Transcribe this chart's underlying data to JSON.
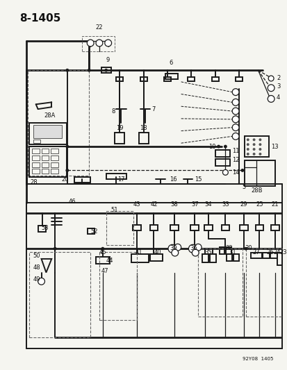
{
  "title": "8-1405",
  "footer": "92Y08  1405",
  "bg_color": "#f5f5f0",
  "line_color": "#1a1a1a",
  "text_color": "#111111",
  "lw_main": 1.4,
  "lw_thin": 0.9,
  "lw_thick": 2.0,
  "fs_title": 11,
  "fs_label": 6.0,
  "fs_footer": 5.0
}
